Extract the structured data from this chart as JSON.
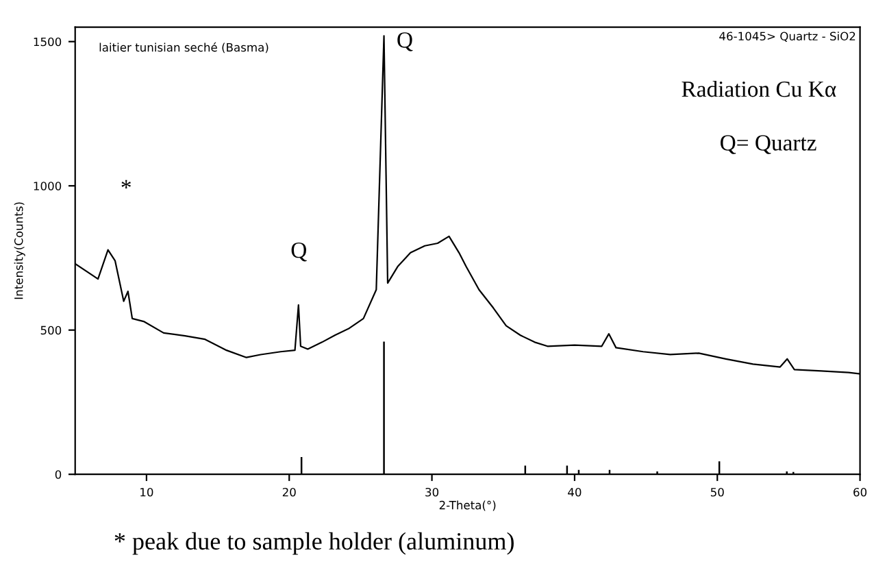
{
  "chart_data": {
    "type": "line",
    "xlabel": "2-Theta(°)",
    "ylabel": "Intensity(Counts)",
    "xlim": [
      5,
      60
    ],
    "ylim": [
      0,
      1550
    ],
    "xticks": [
      10,
      20,
      30,
      40,
      50,
      60
    ],
    "yticks": [
      0,
      500,
      1000,
      1500
    ],
    "grid": false,
    "legend": false,
    "marker": "none",
    "line_style": "solid",
    "series": [
      {
        "color": "#000000",
        "x": [
          5,
          6.6,
          7.3,
          7.8,
          8.4,
          8.7,
          9.0,
          9.8,
          11.2,
          12.7,
          14.1,
          15.6,
          17,
          18,
          19.4,
          20.4,
          20.65,
          20.8,
          21.3,
          22.3,
          23.2,
          24.2,
          25.2,
          26.1,
          26.64,
          26.9,
          27.6,
          28.5,
          29.5,
          30.4,
          31.2,
          31.9,
          32.4,
          33.3,
          34.3,
          35.2,
          36.2,
          37.2,
          38.1,
          40,
          41.9,
          42.4,
          42.9,
          44.8,
          46.7,
          48.7,
          50.6,
          52.5,
          54.4,
          54.9,
          55.4,
          57.3,
          59.2,
          60
        ],
        "values": [
          730,
          677,
          778,
          740,
          600,
          634,
          540,
          530,
          490,
          480,
          468,
          430,
          405,
          415,
          425,
          430,
          587,
          444,
          434,
          458,
          482,
          506,
          540,
          640,
          1520,
          663,
          720,
          768,
          792,
          801,
          825,
          768,
          720,
          640,
          577,
          515,
          482,
          458,
          444,
          448,
          444,
          487,
          439,
          425,
          415,
          420,
          400,
          382,
          372,
          400,
          363,
          358,
          353,
          348
        ]
      },
      {
        "type": "bar",
        "color": "#000000",
        "x": [
          20.86,
          26.64,
          36.54,
          39.47,
          40.29,
          42.45,
          45.79,
          50.14,
          54.87,
          55.33
        ],
        "values": [
          60,
          460,
          30,
          30,
          15,
          15,
          10,
          45,
          10,
          8
        ]
      }
    ],
    "annotations": [
      "laitier tunisian seché (Basma)",
      "46-1045> Quartz - SiO2",
      "Radiation Cu Kα",
      "Q= Quartz",
      "*",
      "Q",
      "Q",
      "* peak due to sample holder (aluminum)"
    ]
  }
}
